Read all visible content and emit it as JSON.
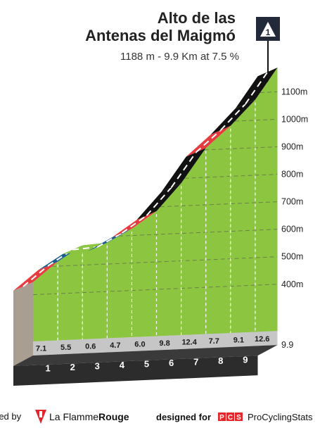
{
  "title_line1": "Alto de las",
  "title_line2": "Antenas del Maigmó",
  "subtitle": "1188 m - 9.9 Km at 7.5 %",
  "badge": {
    "label": "1",
    "icon": "mountain-category-icon"
  },
  "footer": {
    "left_prefix": "red by",
    "brand_name": "La Flamme",
    "brand_name_bold": "Rouge",
    "designed_for": "designed for",
    "pcs_letters": [
      "P",
      "C",
      "S"
    ],
    "pcs_name": "ProCyclingStats"
  },
  "colors": {
    "green": "#8cc53f",
    "black": "#111111",
    "red": "#e63c3f",
    "blue": "#1c5f8f",
    "base": "#3a3a3a",
    "wall": "#a89f92",
    "brand_red": "#e3262b"
  },
  "chart_data": {
    "type": "area",
    "title": "Alto de las Antenas del Maigmó",
    "subtitle": "1188 m - 9.9 Km at 7.5 %",
    "xlabel": "",
    "ylabel": "",
    "distance_km": 9.9,
    "summit_m": 1188,
    "average_gradient_pct": 7.5,
    "km_ticks": [
      "1",
      "2",
      "3",
      "4",
      "5",
      "6",
      "7",
      "8",
      "9"
    ],
    "end_label": "9.9",
    "elevation_ticks": [
      "400m",
      "500m",
      "600m",
      "700m",
      "800m",
      "900m",
      "1000m",
      "1100m"
    ],
    "elevation_values": [
      400,
      500,
      600,
      700,
      800,
      900,
      1000,
      1100
    ],
    "ylim": [
      230,
      1200
    ],
    "grid": true,
    "segments": [
      {
        "km_start": 0,
        "km_end": 1,
        "gradient": 7.1,
        "label": "7.1",
        "color": "red"
      },
      {
        "km_start": 1,
        "km_end": 2,
        "gradient": 5.5,
        "label": "5.5",
        "color": "blue"
      },
      {
        "km_start": 2,
        "km_end": 3,
        "gradient": 0.6,
        "label": "0.6",
        "color": "green"
      },
      {
        "km_start": 3,
        "km_end": 4,
        "gradient": 4.7,
        "label": "4.7",
        "color": "blue"
      },
      {
        "km_start": 4,
        "km_end": 5,
        "gradient": 6.0,
        "label": "6.0",
        "color": "red"
      },
      {
        "km_start": 5,
        "km_end": 6,
        "gradient": 9.8,
        "label": "9.8",
        "color": "black"
      },
      {
        "km_start": 6,
        "km_end": 7,
        "gradient": 12.4,
        "label": "12.4",
        "color": "black"
      },
      {
        "km_start": 7,
        "km_end": 8,
        "gradient": 7.7,
        "label": "7.7",
        "color": "red"
      },
      {
        "km_start": 8,
        "km_end": 9,
        "gradient": 9.1,
        "label": "9.1",
        "color": "black"
      },
      {
        "km_start": 9,
        "km_end": 9.9,
        "gradient": 12.6,
        "label": "12.6",
        "color": "black"
      }
    ]
  }
}
